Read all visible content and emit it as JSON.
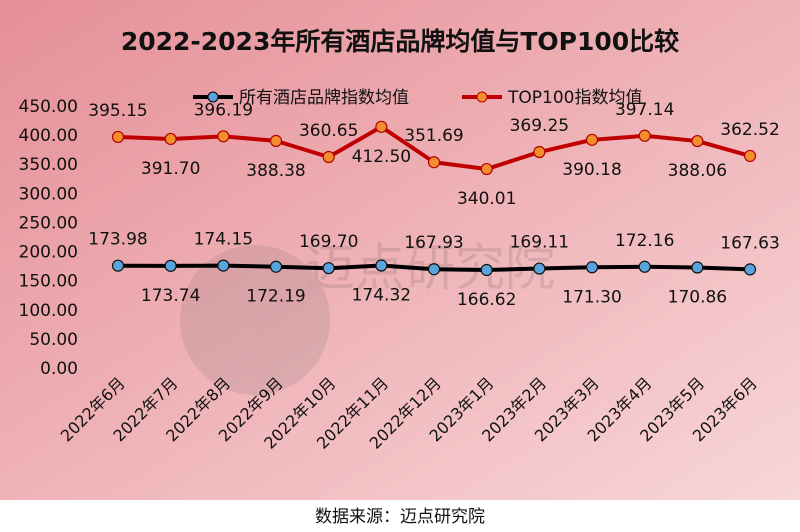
{
  "chart_data": {
    "type": "line",
    "title": "2022-2023年所有酒店品牌均值与TOP100比较",
    "categories": [
      "2022年6月",
      "2022年7月",
      "2022年8月",
      "2022年9月",
      "2022年10月",
      "2022年11月",
      "2022年12月",
      "2023年1月",
      "2023年2月",
      "2023年3月",
      "2023年4月",
      "2023年5月",
      "2023年6月"
    ],
    "series": [
      {
        "name": "所有酒店品牌指数均值",
        "color": "#000000",
        "marker_color": "#5aa3dc",
        "values": [
          173.98,
          173.74,
          174.15,
          172.19,
          169.7,
          174.32,
          167.93,
          166.62,
          169.11,
          171.3,
          172.16,
          170.86,
          167.63
        ]
      },
      {
        "name": "TOP100指数均值",
        "color": "#c00000",
        "marker_color": "#f28e2b",
        "values": [
          395.15,
          391.7,
          396.19,
          388.38,
          360.65,
          412.5,
          351.69,
          340.01,
          369.25,
          390.18,
          397.14,
          388.06,
          362.52
        ]
      }
    ],
    "yticks": [
      "0.00",
      "50.00",
      "100.00",
      "150.00",
      "200.00",
      "250.00",
      "300.00",
      "350.00",
      "400.00",
      "450.00"
    ],
    "ylim": [
      0,
      450
    ],
    "grid": false,
    "legend": "top",
    "watermark": "迈点研究院 MEADIN ACADEMY"
  },
  "source": "数据来源：迈点研究院"
}
